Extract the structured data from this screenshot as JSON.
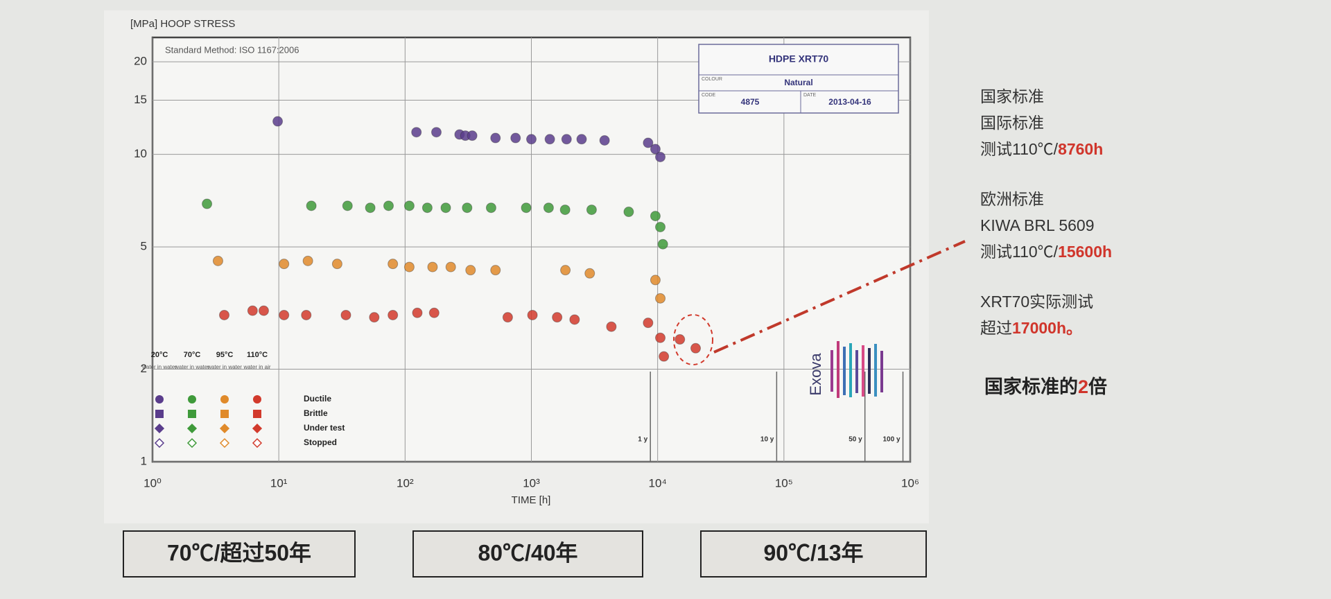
{
  "chart_data": {
    "type": "scatter",
    "y_axis_label": "[MPa] HOOP STRESS",
    "x_axis_label": "TIME [h]",
    "method": "Standard Method: ISO 1167:2006",
    "log_x": true,
    "log_y": true,
    "grid": true,
    "xlim": [
      1,
      1000000
    ],
    "ylim": [
      1,
      24
    ],
    "xticks": [
      {
        "value": 1,
        "label": "10⁰"
      },
      {
        "value": 10,
        "label": "10¹"
      },
      {
        "value": 100,
        "label": "10²"
      },
      {
        "value": 1000,
        "label": "10³"
      },
      {
        "value": 10000,
        "label": "10⁴"
      },
      {
        "value": 100000,
        "label": "10⁵"
      },
      {
        "value": 1000000,
        "label": "10⁶"
      }
    ],
    "yticks": [
      1,
      2,
      5,
      10,
      15,
      20
    ],
    "time_markers": [
      {
        "value": 8760,
        "label": "1 y"
      },
      {
        "value": 87600,
        "label": "10 y"
      },
      {
        "value": 438000,
        "label": "50 y"
      },
      {
        "value": 876000,
        "label": "100 y"
      }
    ],
    "info_box": {
      "title": "HDPE XRT70",
      "colour_label": "COLOUR",
      "colour": "Natural",
      "code_label": "CODE",
      "code": "4875",
      "date_label": "DATE",
      "date": "2013-04-16"
    },
    "logo": "Exova",
    "legend_rows": [
      "Ductile",
      "Brittle",
      "Under test",
      "Stopped"
    ],
    "series": [
      {
        "name": "20°C",
        "medium": "water in water",
        "color": "#5a3d8c",
        "x": [
          9.8,
          123,
          177,
          270,
          300,
          340,
          520,
          750,
          1000,
          1400,
          1900,
          2500,
          3800,
          8400,
          9600,
          10500
        ],
        "values": [
          12.8,
          11.8,
          11.8,
          11.6,
          11.5,
          11.5,
          11.3,
          11.3,
          11.2,
          11.2,
          11.2,
          11.2,
          11.1,
          10.9,
          10.4,
          9.8
        ]
      },
      {
        "name": "70°C",
        "medium": "water in water",
        "color": "#3f9a3a",
        "x": [
          2.7,
          18.1,
          35,
          53,
          74,
          108,
          150,
          210,
          310,
          480,
          910,
          1370,
          1850,
          3000,
          5900,
          9600,
          10500,
          11000
        ],
        "values": [
          6.9,
          6.8,
          6.8,
          6.7,
          6.8,
          6.8,
          6.7,
          6.7,
          6.7,
          6.7,
          6.7,
          6.7,
          6.6,
          6.6,
          6.5,
          6.3,
          5.8,
          5.1
        ]
      },
      {
        "name": "95°C",
        "medium": "water in water",
        "color": "#e08a2a",
        "x": [
          3.3,
          11,
          17,
          29,
          80,
          108,
          165,
          230,
          330,
          520,
          1860,
          2900,
          9600,
          10500
        ],
        "values": [
          4.5,
          4.4,
          4.5,
          4.4,
          4.4,
          4.3,
          4.3,
          4.3,
          4.2,
          4.2,
          4.2,
          4.1,
          3.9,
          3.4
        ]
      },
      {
        "name": "110°C",
        "medium": "water in air",
        "color": "#d23a2c",
        "x": [
          3.7,
          6.2,
          7.6,
          11,
          16.5,
          34,
          57,
          80,
          125,
          170,
          650,
          1020,
          1600,
          2200,
          4300,
          8400,
          10500,
          11200,
          15000,
          20000
        ],
        "values": [
          3.0,
          3.1,
          3.1,
          3.0,
          3.0,
          3.0,
          2.95,
          3.0,
          3.05,
          3.05,
          2.95,
          3.0,
          2.95,
          2.9,
          2.75,
          2.83,
          2.53,
          2.2,
          2.5,
          2.34
        ]
      }
    ]
  },
  "notes": [
    {
      "lines": [
        [
          "国家标准"
        ],
        [
          "国际标准"
        ],
        [
          "测试110℃/",
          "8760h"
        ]
      ]
    },
    {
      "lines": [
        [
          "欧洲标准"
        ],
        [
          "KIWA BRL 5609"
        ],
        [
          "测试110℃/",
          "15600h"
        ]
      ]
    },
    {
      "lines": [
        [
          "XRT70实际测试"
        ],
        [
          "超过",
          "17000h。"
        ]
      ]
    }
  ],
  "conclusion": [
    "国家标准的",
    "2",
    "倍"
  ],
  "footer_boxes": [
    "70℃/超过50年",
    "80℃/40年",
    "90℃/13年"
  ]
}
